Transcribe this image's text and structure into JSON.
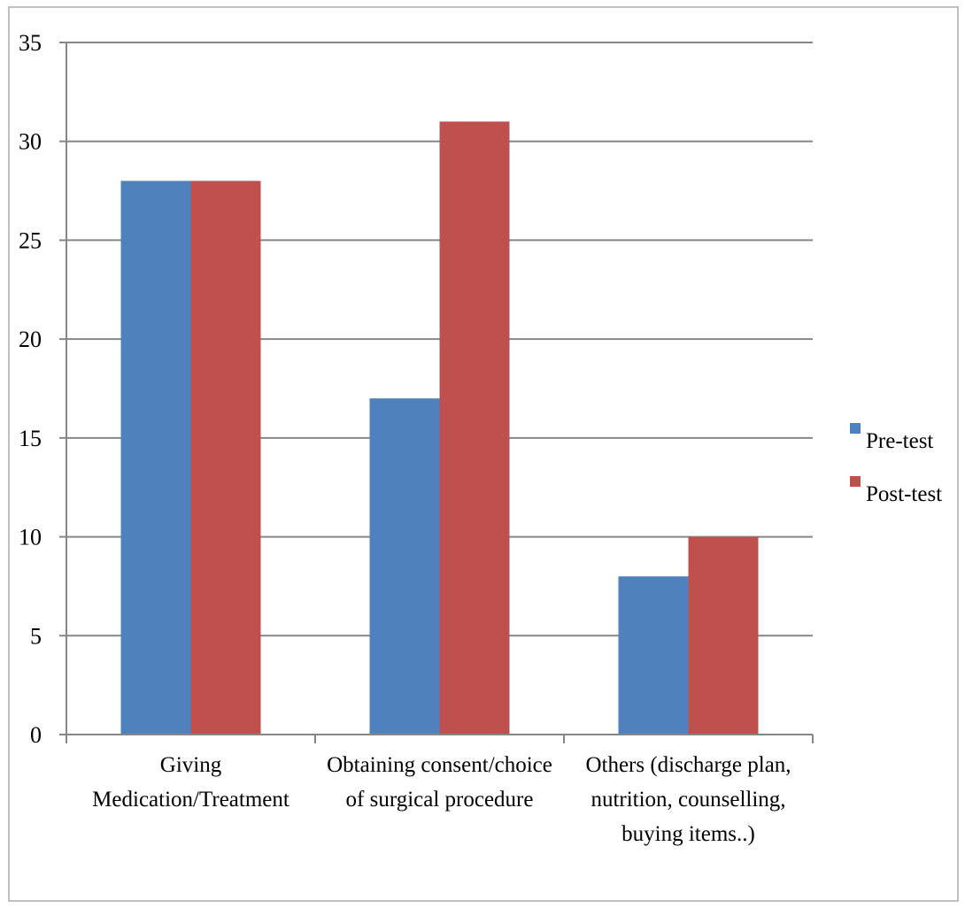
{
  "chart_data": {
    "type": "bar",
    "title": "",
    "xlabel": "",
    "ylabel": "",
    "ylim": [
      0,
      35
    ],
    "yticks": [
      0,
      5,
      10,
      15,
      20,
      25,
      30,
      35
    ],
    "grid": true,
    "legend_position": "right",
    "categories": [
      [
        "Giving",
        "Medication/Treatment"
      ],
      [
        "Obtaining consent/choice",
        "of surgical procedure"
      ],
      [
        "Others (discharge plan,",
        "nutrition, counselling,",
        "buying items..)"
      ]
    ],
    "series": [
      {
        "name": "Pre-test",
        "color": "#4F81BD",
        "values": [
          28,
          17,
          8
        ]
      },
      {
        "name": "Post-test",
        "color": "#C0504D",
        "values": [
          28,
          31,
          10
        ]
      }
    ]
  }
}
